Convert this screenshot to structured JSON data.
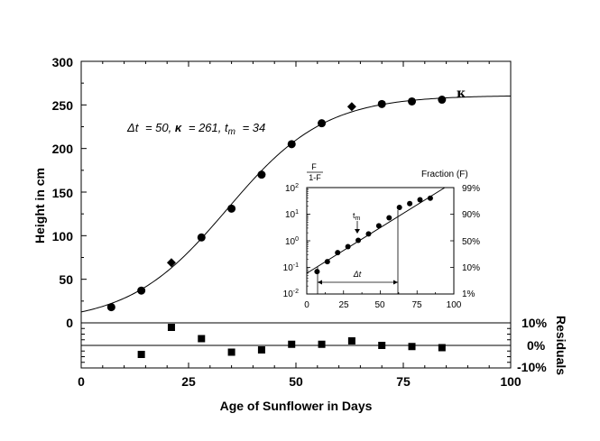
{
  "chart_data": {
    "type": "scatter",
    "xlabel": "Age of Sunflower in Days",
    "ylabel": "Height in cm",
    "xlim": [
      0,
      100
    ],
    "ylim": [
      0,
      300
    ],
    "x_ticks": [
      "0",
      "25",
      "50",
      "75",
      "100"
    ],
    "y_ticks": [
      "0",
      "50",
      "100",
      "150",
      "200",
      "250",
      "300"
    ],
    "kappa_label": "κ",
    "annotation": "Δt = 50, κ = 261, t_m = 34",
    "annotation_parts": {
      "dt": "Δt",
      "eq1": "= 50,",
      "kappa": "κ",
      "eq2": "= 261,",
      "tm": "t",
      "tm_sub": "m",
      "eq3": "= 34"
    },
    "series": [
      {
        "marker": "circle",
        "x": [
          7,
          14,
          28,
          35,
          42,
          49,
          56,
          70,
          77,
          84
        ],
        "y": [
          18,
          37,
          98,
          131,
          170,
          205,
          229,
          251,
          254,
          256
        ]
      },
      {
        "marker": "diamond",
        "x": [
          21,
          63
        ],
        "y": [
          69,
          248
        ]
      }
    ],
    "fit": {
      "model": "logistic",
      "kappa": 261,
      "dt": 50,
      "tm": 34
    },
    "residuals": {
      "ylabel": "Residuals",
      "ticks": [
        "10%",
        "0%",
        "-10%"
      ],
      "ylim": [
        -10,
        10
      ],
      "x": [
        14,
        21,
        28,
        35,
        42,
        49,
        56,
        63,
        70,
        77,
        84
      ],
      "y": [
        -4,
        8,
        3,
        -3,
        -2,
        0.5,
        0.5,
        2,
        0,
        -0.5,
        -1
      ]
    },
    "inset": {
      "left_label_top": "F",
      "left_label_bottom": "1-F",
      "right_label": "Fraction (F)",
      "xlim": [
        0,
        100
      ],
      "x_ticks": [
        "0",
        "25",
        "50",
        "75",
        "100"
      ],
      "y_ticks": [
        {
          "base": "10",
          "exp": "2"
        },
        {
          "base": "10",
          "exp": "1"
        },
        {
          "base": "10",
          "exp": "0"
        },
        {
          "base": "10",
          "exp": "-1"
        },
        {
          "base": "10",
          "exp": "-2"
        }
      ],
      "right_ticks": [
        "99%",
        "90%",
        "50%",
        "10%",
        "1%"
      ],
      "tm_label": "t",
      "tm_sub": "m",
      "dt_label": "Δt",
      "x": [
        7,
        14,
        21,
        28,
        35,
        42,
        49,
        56,
        63,
        70,
        77,
        84
      ],
      "y": [
        0.07,
        0.165,
        0.36,
        0.6,
        1.04,
        1.81,
        3.65,
        7.3,
        18,
        25,
        35,
        40
      ]
    }
  }
}
